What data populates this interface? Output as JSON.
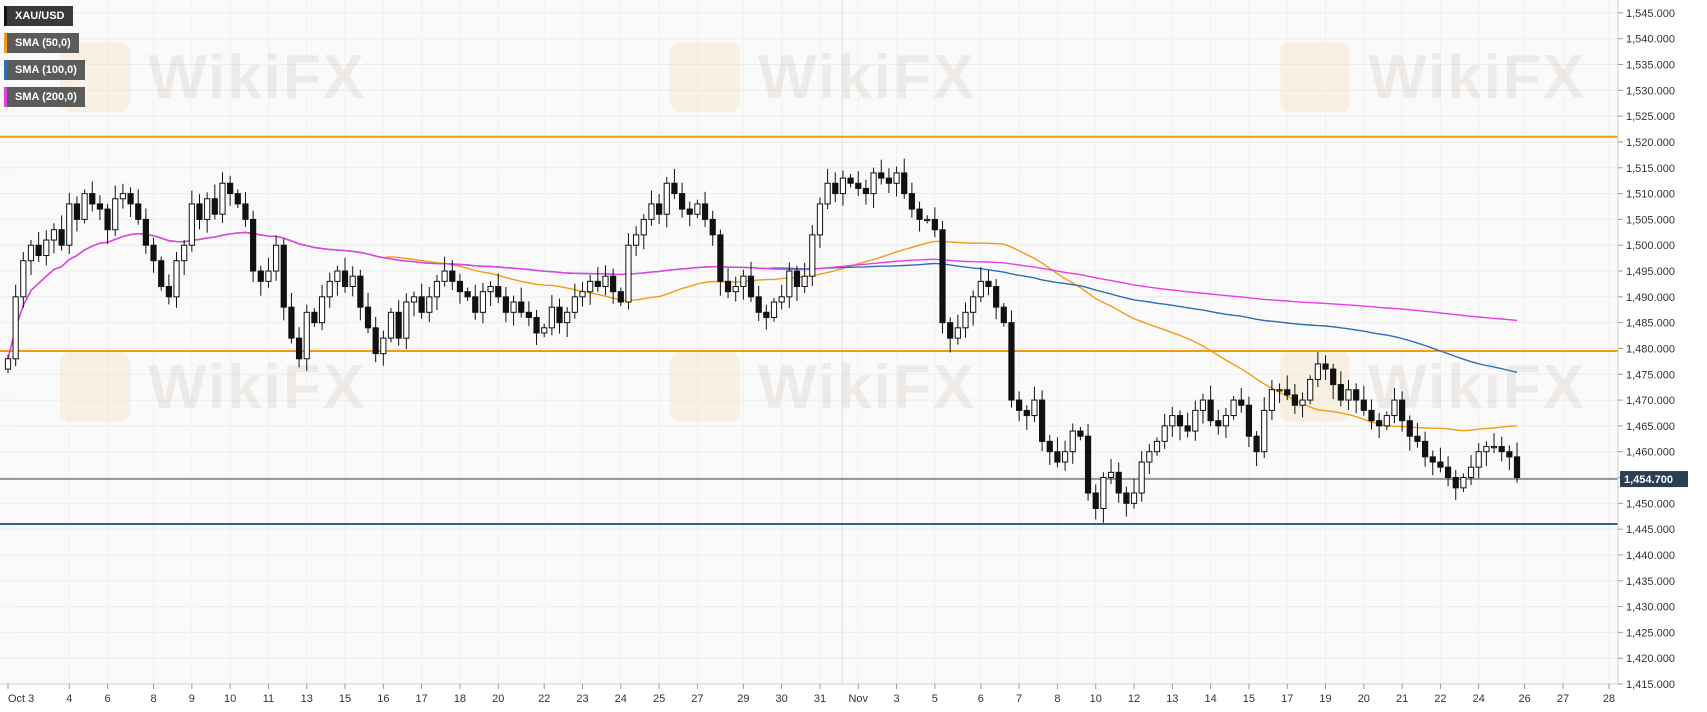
{
  "legend": [
    {
      "label": "XAU/USD",
      "color": "#111111"
    },
    {
      "label": "SMA (50,0)",
      "color": "#f39c12"
    },
    {
      "label": "SMA (100,0)",
      "color": "#2e6fb5"
    },
    {
      "label": "SMA (200,0)",
      "color": "#e83ee8"
    }
  ],
  "watermark": "WikiFX",
  "chart_data": {
    "type": "candlestick",
    "title": "XAU/USD",
    "ylim": [
      1415,
      1547.5
    ],
    "y_ticks": [
      1415,
      1420,
      1425,
      1430,
      1435,
      1440,
      1445,
      1450,
      1455,
      1460,
      1465,
      1470,
      1475,
      1480,
      1485,
      1490,
      1495,
      1500,
      1505,
      1510,
      1515,
      1520,
      1525,
      1530,
      1535,
      1540,
      1545
    ],
    "x_ticks": [
      {
        "label": "Oct 3",
        "i": 0
      },
      {
        "label": "4",
        "i": 8
      },
      {
        "label": "6",
        "i": 13
      },
      {
        "label": "8",
        "i": 19
      },
      {
        "label": "9",
        "i": 24
      },
      {
        "label": "10",
        "i": 29
      },
      {
        "label": "11",
        "i": 34
      },
      {
        "label": "13",
        "i": 39
      },
      {
        "label": "15",
        "i": 44
      },
      {
        "label": "16",
        "i": 49
      },
      {
        "label": "17",
        "i": 54
      },
      {
        "label": "18",
        "i": 59
      },
      {
        "label": "20",
        "i": 64
      },
      {
        "label": "22",
        "i": 70
      },
      {
        "label": "23",
        "i": 75
      },
      {
        "label": "24",
        "i": 80
      },
      {
        "label": "25",
        "i": 85
      },
      {
        "label": "27",
        "i": 90
      },
      {
        "label": "29",
        "i": 96
      },
      {
        "label": "30",
        "i": 101
      },
      {
        "label": "31",
        "i": 106
      },
      {
        "label": "Nov",
        "i": 111
      },
      {
        "label": "3",
        "i": 116
      },
      {
        "label": "5",
        "i": 121
      },
      {
        "label": "6",
        "i": 127
      },
      {
        "label": "7",
        "i": 132
      },
      {
        "label": "8",
        "i": 137
      },
      {
        "label": "10",
        "i": 142
      },
      {
        "label": "12",
        "i": 147
      },
      {
        "label": "13",
        "i": 152
      },
      {
        "label": "14",
        "i": 157
      },
      {
        "label": "15",
        "i": 162
      },
      {
        "label": "17",
        "i": 167
      },
      {
        "label": "19",
        "i": 172
      },
      {
        "label": "20",
        "i": 177
      },
      {
        "label": "21",
        "i": 182
      },
      {
        "label": "22",
        "i": 187
      },
      {
        "label": "24",
        "i": 192
      },
      {
        "label": "26",
        "i": 198
      },
      {
        "label": "27",
        "i": 203
      },
      {
        "label": "28",
        "i": 209
      }
    ],
    "current_price": 1454.7,
    "current_price_label": "1,454.700",
    "horizontal_levels": [
      {
        "value": 1521,
        "color": "#f39c12"
      },
      {
        "value": 1479.5,
        "color": "#f39c12"
      },
      {
        "value": 1446,
        "color": "#2e5f9e"
      }
    ],
    "closes": [
      1478,
      1490,
      1497,
      1500,
      1498,
      1501,
      1503,
      1500,
      1508,
      1505,
      1510,
      1508,
      1507,
      1503,
      1509,
      1510,
      1508,
      1505,
      1500,
      1497,
      1492,
      1490,
      1497,
      1500,
      1508,
      1505,
      1509,
      1506,
      1512,
      1510,
      1508,
      1505,
      1495,
      1493,
      1495,
      1500,
      1488,
      1482,
      1478,
      1487,
      1485,
      1490,
      1493,
      1495,
      1492,
      1494,
      1488,
      1484,
      1479,
      1482,
      1487,
      1482,
      1489,
      1490,
      1487,
      1490,
      1493,
      1495,
      1493,
      1491,
      1490,
      1487,
      1491,
      1492,
      1490,
      1487,
      1489,
      1487,
      1486,
      1483,
      1484,
      1488,
      1485,
      1487,
      1490,
      1491,
      1493,
      1492,
      1494,
      1491,
      1489,
      1500,
      1502,
      1505,
      1508,
      1506,
      1512,
      1510,
      1507,
      1506,
      1508,
      1505,
      1502,
      1493,
      1491,
      1492,
      1494,
      1490,
      1487,
      1486,
      1489,
      1490,
      1495,
      1492,
      1494,
      1502,
      1508,
      1512,
      1510,
      1513,
      1512,
      1511,
      1510,
      1514,
      1513,
      1512,
      1514,
      1510,
      1507,
      1505,
      1505,
      1503,
      1485,
      1482,
      1484,
      1487,
      1490,
      1493,
      1492,
      1488,
      1485,
      1470,
      1468,
      1467,
      1470,
      1462,
      1460,
      1458,
      1460,
      1464,
      1463,
      1452,
      1449,
      1455,
      1456,
      1452,
      1450,
      1452,
      1458,
      1460,
      1462,
      1465,
      1467,
      1465,
      1464,
      1468,
      1470,
      1466,
      1465,
      1467,
      1470,
      1469,
      1463,
      1460,
      1468,
      1472,
      1472,
      1471,
      1469,
      1470,
      1474,
      1477,
      1476,
      1473,
      1470,
      1472,
      1470,
      1468,
      1466,
      1465,
      1467,
      1470,
      1466,
      1463,
      1462,
      1459,
      1458,
      1457,
      1455,
      1453,
      1455,
      1457,
      1460,
      1461,
      1461,
      1460,
      1459,
      1455
    ]
  }
}
